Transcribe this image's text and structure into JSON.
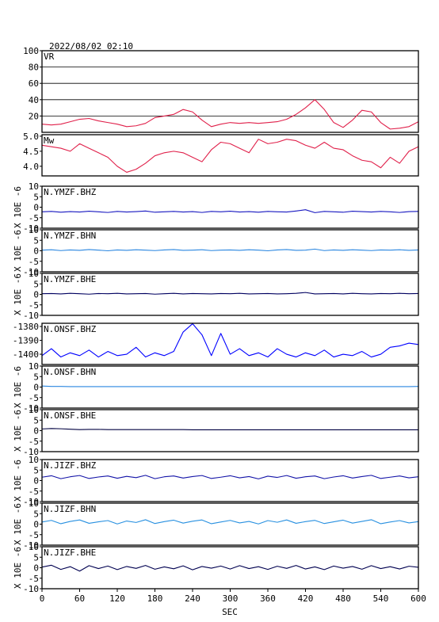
{
  "chart_data": {
    "type": "line",
    "title": "2022/08/02 02:10",
    "xlabel": "SEC",
    "xlim": [
      0,
      600
    ],
    "xticks": [
      0,
      60,
      120,
      180,
      240,
      300,
      360,
      420,
      480,
      540,
      600
    ],
    "x": [
      0,
      15,
      30,
      45,
      60,
      75,
      90,
      105,
      120,
      135,
      150,
      165,
      180,
      195,
      210,
      225,
      240,
      255,
      270,
      285,
      300,
      315,
      330,
      345,
      360,
      375,
      390,
      405,
      420,
      435,
      450,
      465,
      480,
      495,
      510,
      525,
      540,
      555,
      570,
      585,
      600
    ],
    "panels": [
      {
        "label": "VR",
        "color": "#e0204a",
        "grid": true,
        "ylim": [
          0,
          100
        ],
        "yticks": [
          20,
          40,
          60,
          80,
          100
        ],
        "values": [
          10,
          9,
          10,
          13,
          16,
          17,
          14,
          12,
          10,
          7,
          8,
          11,
          18,
          20,
          22,
          28,
          25,
          15,
          7,
          10,
          12,
          11,
          12,
          11,
          12,
          13,
          16,
          22,
          30,
          40,
          28,
          12,
          6,
          15,
          27,
          25,
          12,
          4,
          5,
          7,
          13
        ]
      },
      {
        "label": "Mw",
        "color": "#e0204a",
        "ylim": [
          3.68,
          5.05
        ],
        "yticks": [
          {
            "value": 5.0,
            "label": "5.0"
          },
          4.5,
          {
            "value": 4.0,
            "label": "4.0"
          }
        ],
        "values": [
          4.7,
          4.65,
          4.6,
          4.5,
          4.75,
          4.6,
          4.45,
          4.3,
          4.0,
          3.8,
          3.9,
          4.1,
          4.35,
          4.45,
          4.5,
          4.45,
          4.3,
          4.15,
          4.55,
          4.8,
          4.75,
          4.6,
          4.45,
          4.9,
          4.75,
          4.8,
          4.9,
          4.85,
          4.7,
          4.6,
          4.8,
          4.6,
          4.55,
          4.35,
          4.2,
          4.15,
          3.95,
          4.3,
          4.1,
          4.5,
          4.65
        ]
      },
      {
        "label": "N.YMZF.BHZ",
        "ylabel": "X 10E -6",
        "color": "#1818c0",
        "ylim": [
          -10,
          10
        ],
        "yticks": [
          10,
          5,
          0,
          -5,
          -10
        ],
        "values": [
          -2.2,
          -2.0,
          -2.4,
          -2.1,
          -2.3,
          -1.9,
          -2.2,
          -2.5,
          -2.0,
          -2.3,
          -2.1,
          -1.8,
          -2.4,
          -2.2,
          -2.0,
          -2.3,
          -2.1,
          -2.5,
          -2.0,
          -2.2,
          -1.9,
          -2.3,
          -2.1,
          -2.4,
          -2.0,
          -2.2,
          -2.3,
          -1.8,
          -1.2,
          -2.6,
          -2.0,
          -2.2,
          -2.4,
          -1.9,
          -2.1,
          -2.3,
          -2.0,
          -2.2,
          -2.5,
          -2.1,
          -2.0
        ]
      },
      {
        "label": "N.YMZF.BHN",
        "ylabel": "X 10E -6",
        "color": "#2a86e0",
        "ylim": [
          -10,
          10
        ],
        "yticks": [
          10,
          5,
          0,
          -5,
          -10
        ],
        "values": [
          0.3,
          0.5,
          0.1,
          0.4,
          0.2,
          0.6,
          0.3,
          0.0,
          0.4,
          0.2,
          0.5,
          0.3,
          0.1,
          0.4,
          0.6,
          0.2,
          0.3,
          0.5,
          0.1,
          0.3,
          0.4,
          0.2,
          0.5,
          0.3,
          0.0,
          0.4,
          0.6,
          0.2,
          0.3,
          0.8,
          0.1,
          0.4,
          0.2,
          0.5,
          0.3,
          0.1,
          0.4,
          0.3,
          0.5,
          0.2,
          0.4
        ]
      },
      {
        "label": "N.YMZF.BHE",
        "ylabel": "X 10E -6",
        "color": "#000060",
        "ylim": [
          -10,
          10
        ],
        "yticks": [
          10,
          5,
          0,
          -5,
          -10
        ],
        "values": [
          0.3,
          0.4,
          0.2,
          0.5,
          0.3,
          0.1,
          0.4,
          0.3,
          0.5,
          0.2,
          0.3,
          0.4,
          0.1,
          0.3,
          0.5,
          0.2,
          0.4,
          0.3,
          0.2,
          0.4,
          0.3,
          0.5,
          0.2,
          0.3,
          0.4,
          0.2,
          0.3,
          0.5,
          0.9,
          0.2,
          0.3,
          0.4,
          0.2,
          0.5,
          0.3,
          0.2,
          0.4,
          0.3,
          0.5,
          0.3,
          0.4
        ]
      },
      {
        "label": "N.ONSF.BHZ",
        "color": "#0000ff",
        "ylim": [
          -1407.4,
          -1377.7
        ],
        "yticks": [
          -1380,
          -1390,
          -1400
        ],
        "values": [
          -1401,
          -1396,
          -1402,
          -1399,
          -1401,
          -1397,
          -1402,
          -1398,
          -1401,
          -1400,
          -1395,
          -1402,
          -1399,
          -1401,
          -1398,
          -1384,
          -1378,
          -1386,
          -1401,
          -1385,
          -1400,
          -1396,
          -1401,
          -1399,
          -1402,
          -1396,
          -1400,
          -1402,
          -1399,
          -1401,
          -1397,
          -1402,
          -1400,
          -1401,
          -1398,
          -1402,
          -1400,
          -1395,
          -1394,
          -1392,
          -1393
        ]
      },
      {
        "label": "N.ONSF.BHN",
        "ylabel": "X 10E -6",
        "color": "#2a86e0",
        "ylim": [
          -10,
          10
        ],
        "yticks": [
          10,
          5,
          0,
          -5,
          -10
        ],
        "values": [
          0.5,
          0.3,
          0.3,
          0.2,
          0.2,
          0.2,
          0.2,
          0.2,
          0.2,
          0.2,
          0.2,
          0.2,
          0.2,
          0.2,
          0.2,
          0.2,
          0.2,
          0.2,
          0.2,
          0.2,
          0.2,
          0.2,
          0.2,
          0.2,
          0.2,
          0.2,
          0.2,
          0.2,
          0.2,
          0.2,
          0.2,
          0.2,
          0.2,
          0.2,
          0.2,
          0.2,
          0.2,
          0.2,
          0.2,
          0.2,
          0.3
        ]
      },
      {
        "label": "N.ONSF.BHE",
        "ylabel": "X 10E -6",
        "color": "#000040",
        "ylim": [
          -10,
          10
        ],
        "yticks": [
          10,
          5,
          0,
          -5,
          -10
        ],
        "values": [
          0.8,
          1.0,
          0.9,
          0.7,
          0.5,
          0.6,
          0.6,
          0.5,
          0.5,
          0.5,
          0.5,
          0.5,
          0.5,
          0.5,
          0.5,
          0.5,
          0.4,
          0.4,
          0.4,
          0.4,
          0.4,
          0.4,
          0.4,
          0.4,
          0.4,
          0.4,
          0.4,
          0.4,
          0.4,
          0.4,
          0.4,
          0.4,
          0.4,
          0.4,
          0.4,
          0.4,
          0.4,
          0.4,
          0.4,
          0.4,
          0.4
        ]
      },
      {
        "label": "N.JIZF.BHZ",
        "ylabel": "X 10E -6",
        "color": "#1414a8",
        "ylim": [
          -10,
          10
        ],
        "yticks": [
          10,
          5,
          0,
          -5,
          -10
        ],
        "values": [
          1.6,
          2.3,
          0.9,
          1.8,
          2.4,
          1.0,
          1.7,
          2.2,
          1.1,
          2.0,
          1.4,
          2.5,
          0.9,
          1.8,
          2.2,
          1.2,
          1.9,
          2.4,
          1.0,
          1.6,
          2.3,
          1.3,
          1.9,
          0.8,
          2.1,
          1.5,
          2.4,
          1.1,
          1.8,
          2.2,
          0.9,
          1.7,
          2.3,
          1.2,
          1.9,
          2.5,
          1.0,
          1.6,
          2.2,
          1.3,
          1.8
        ]
      },
      {
        "label": "N.JIZF.BHN",
        "ylabel": "X 10E -6",
        "color": "#2890e0",
        "ylim": [
          -10,
          10
        ],
        "yticks": [
          10,
          5,
          0,
          -5,
          -10
        ],
        "values": [
          1.0,
          1.8,
          0.2,
          1.3,
          2.0,
          0.4,
          1.1,
          1.7,
          0.1,
          1.5,
          0.8,
          2.1,
          0.3,
          1.2,
          1.9,
          0.5,
          1.4,
          2.0,
          0.2,
          1.0,
          1.8,
          0.6,
          1.3,
          0.1,
          1.7,
          0.9,
          2.0,
          0.4,
          1.2,
          1.8,
          0.3,
          1.1,
          1.9,
          0.5,
          1.3,
          2.1,
          0.2,
          1.0,
          1.7,
          0.6,
          1.2
        ]
      },
      {
        "label": "N.JIZF.BHE",
        "ylabel": "X 10E -6",
        "color": "#000050",
        "ylim": [
          -10,
          10
        ],
        "yticks": [
          10,
          5,
          0,
          -5,
          -10
        ],
        "values": [
          0.3,
          1.2,
          -0.8,
          0.5,
          -1.6,
          1.0,
          -0.4,
          0.8,
          -0.9,
          0.6,
          -0.3,
          1.1,
          -0.7,
          0.4,
          -0.5,
          0.9,
          -1.0,
          0.6,
          -0.2,
          0.8,
          -0.6,
          1.0,
          -0.4,
          0.5,
          -0.8,
          0.7,
          -0.3,
          1.1,
          -0.6,
          0.4,
          -0.9,
          0.8,
          -0.2,
          0.6,
          -0.7,
          1.0,
          -0.4,
          0.5,
          -0.6,
          0.7,
          0.2
        ]
      }
    ]
  }
}
